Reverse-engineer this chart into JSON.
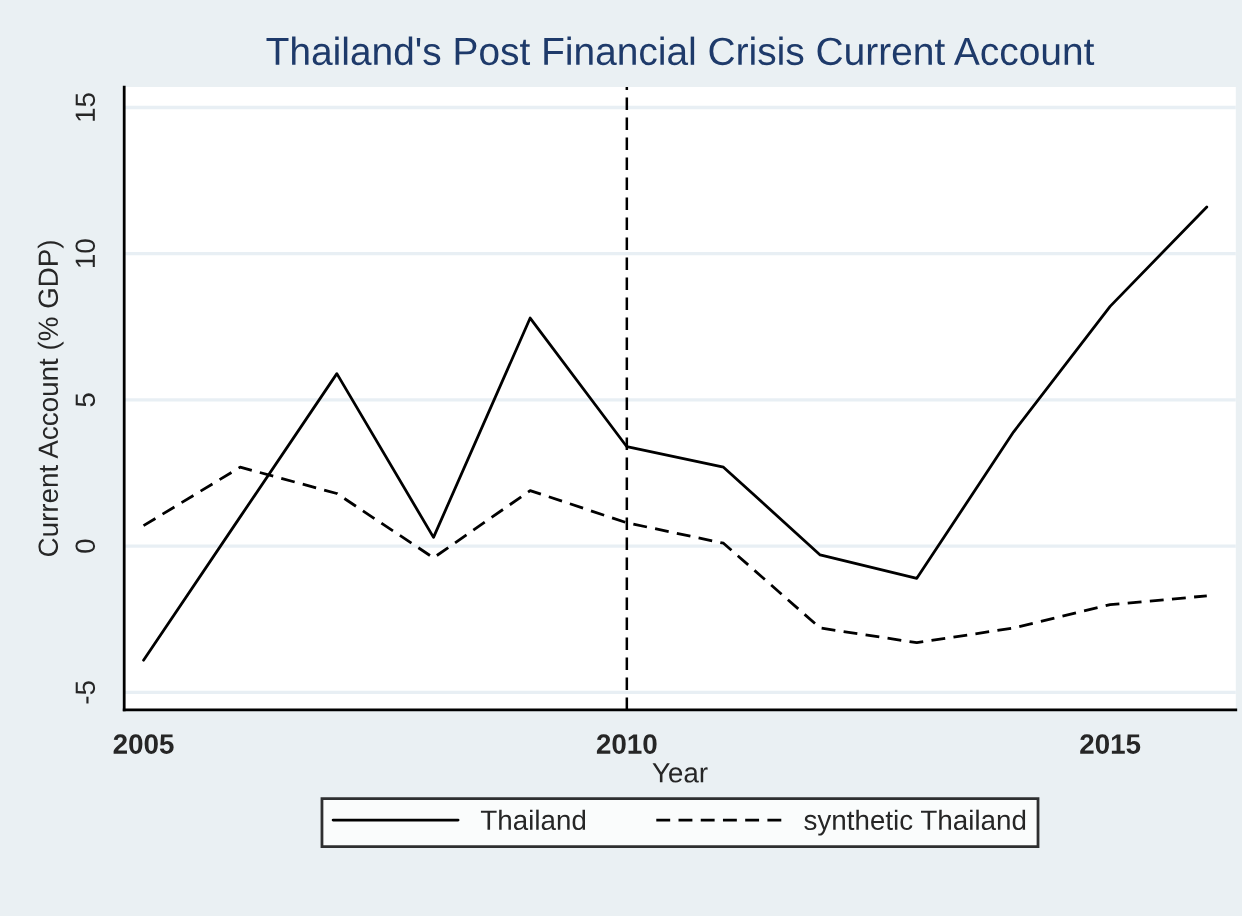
{
  "chart_data": {
    "type": "line",
    "title": "Thailand's Post Financial Crisis Current Account",
    "xlabel": "Year",
    "ylabel": "Current Account (% GDP)",
    "x": [
      2005,
      2006,
      2007,
      2008,
      2009,
      2010,
      2011,
      2012,
      2013,
      2014,
      2015,
      2016
    ],
    "series": [
      {
        "name": "Thailand",
        "color": "#000000",
        "line_style": "solid",
        "values": [
          -3.9,
          1.0,
          5.9,
          0.3,
          7.8,
          3.4,
          2.7,
          -0.3,
          -1.1,
          3.9,
          8.2,
          11.6
        ]
      },
      {
        "name": "synthetic Thailand",
        "color": "#000000",
        "line_style": "dashed",
        "values": [
          0.7,
          2.7,
          1.8,
          -0.4,
          1.9,
          0.8,
          0.1,
          -2.8,
          -3.3,
          -2.8,
          -2.0,
          -1.7
        ]
      }
    ],
    "xlim": [
      2004.8,
      2016.3
    ],
    "ylim": [
      -5.6,
      15.7
    ],
    "xticks": [
      2005,
      2010,
      2015
    ],
    "yticks": [
      -5,
      0,
      5,
      10,
      15
    ],
    "ref_lines": [
      {
        "axis": "x",
        "value": 2010,
        "color": "#000000",
        "line_style": "dashed"
      }
    ],
    "grid": "y",
    "legend": "bottom",
    "marker": "none"
  }
}
